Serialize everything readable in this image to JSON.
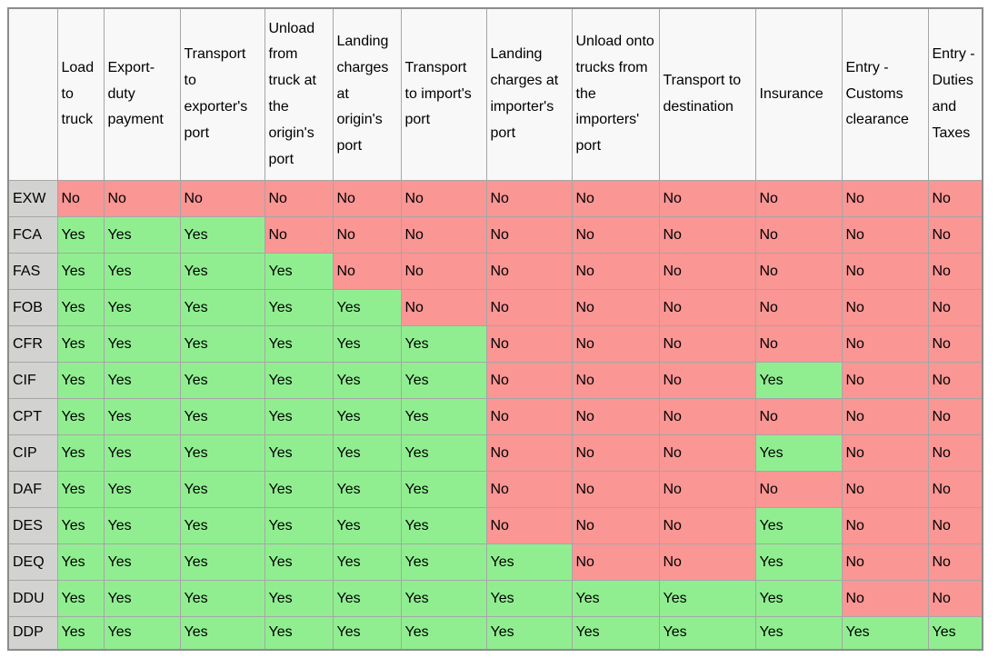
{
  "table": {
    "corner_label": "",
    "columns": [
      "Load to truck",
      "Export-duty payment",
      "Transport to exporter's port",
      "Unload from truck at the origin's port",
      "Landing charges at origin's port",
      "Transport to import's port",
      "Landing charges at importer's port",
      "Unload onto trucks from the importers' port",
      "Transport to destination",
      "Insurance",
      "Entry - Customs clearance",
      "Entry - Duties and Taxes"
    ],
    "rows": [
      {
        "term": "EXW",
        "values": [
          "No",
          "No",
          "No",
          "No",
          "No",
          "No",
          "No",
          "No",
          "No",
          "No",
          "No",
          "No"
        ]
      },
      {
        "term": "FCA",
        "values": [
          "Yes",
          "Yes",
          "Yes",
          "No",
          "No",
          "No",
          "No",
          "No",
          "No",
          "No",
          "No",
          "No"
        ]
      },
      {
        "term": "FAS",
        "values": [
          "Yes",
          "Yes",
          "Yes",
          "Yes",
          "No",
          "No",
          "No",
          "No",
          "No",
          "No",
          "No",
          "No"
        ]
      },
      {
        "term": "FOB",
        "values": [
          "Yes",
          "Yes",
          "Yes",
          "Yes",
          "Yes",
          "No",
          "No",
          "No",
          "No",
          "No",
          "No",
          "No"
        ]
      },
      {
        "term": "CFR",
        "values": [
          "Yes",
          "Yes",
          "Yes",
          "Yes",
          "Yes",
          "Yes",
          "No",
          "No",
          "No",
          "No",
          "No",
          "No"
        ]
      },
      {
        "term": "CIF",
        "values": [
          "Yes",
          "Yes",
          "Yes",
          "Yes",
          "Yes",
          "Yes",
          "No",
          "No",
          "No",
          "Yes",
          "No",
          "No"
        ]
      },
      {
        "term": "CPT",
        "values": [
          "Yes",
          "Yes",
          "Yes",
          "Yes",
          "Yes",
          "Yes",
          "No",
          "No",
          "No",
          "No",
          "No",
          "No"
        ]
      },
      {
        "term": "CIP",
        "values": [
          "Yes",
          "Yes",
          "Yes",
          "Yes",
          "Yes",
          "Yes",
          "No",
          "No",
          "No",
          "Yes",
          "No",
          "No"
        ]
      },
      {
        "term": "DAF",
        "values": [
          "Yes",
          "Yes",
          "Yes",
          "Yes",
          "Yes",
          "Yes",
          "No",
          "No",
          "No",
          "No",
          "No",
          "No"
        ]
      },
      {
        "term": "DES",
        "values": [
          "Yes",
          "Yes",
          "Yes",
          "Yes",
          "Yes",
          "Yes",
          "No",
          "No",
          "No",
          "Yes",
          "No",
          "No"
        ]
      },
      {
        "term": "DEQ",
        "values": [
          "Yes",
          "Yes",
          "Yes",
          "Yes",
          "Yes",
          "Yes",
          "Yes",
          "No",
          "No",
          "Yes",
          "No",
          "No"
        ]
      },
      {
        "term": "DDU",
        "values": [
          "Yes",
          "Yes",
          "Yes",
          "Yes",
          "Yes",
          "Yes",
          "Yes",
          "Yes",
          "Yes",
          "Yes",
          "No",
          "No"
        ]
      },
      {
        "term": "DDP",
        "values": [
          "Yes",
          "Yes",
          "Yes",
          "Yes",
          "Yes",
          "Yes",
          "Yes",
          "Yes",
          "Yes",
          "Yes",
          "Yes",
          "Yes"
        ]
      }
    ],
    "cell_values": {
      "yes": "Yes",
      "no": "No"
    },
    "colors": {
      "yes_bg": "#90ee90",
      "no_bg": "#fa9694",
      "term_bg": "#d2d2d0",
      "header_bg": "#f8f8f8",
      "border": "#a6a6a6",
      "outer_border": "#8c8c8c"
    }
  }
}
